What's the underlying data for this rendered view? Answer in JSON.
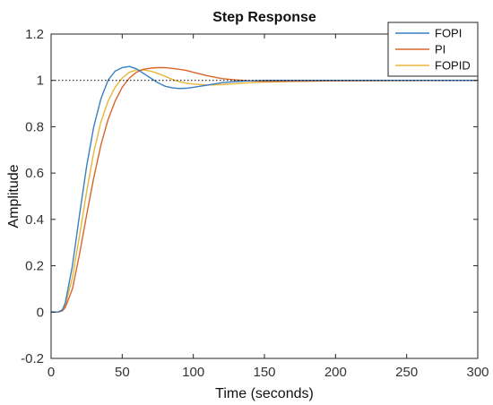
{
  "chart_data": {
    "type": "line",
    "title": "Step Response",
    "xlabel": "Time (seconds)",
    "ylabel": "Amplitude",
    "xlim": [
      0,
      300
    ],
    "ylim": [
      -0.2,
      1.2
    ],
    "xticks": [
      0,
      50,
      100,
      150,
      200,
      250,
      300
    ],
    "yticks": [
      -0.2,
      0,
      0.2,
      0.4,
      0.6,
      0.8,
      1,
      1.2
    ],
    "xtick_labels": [
      "0",
      "50",
      "100",
      "150",
      "200",
      "250",
      "300"
    ],
    "ytick_labels": [
      "-0.2",
      "0",
      "0.2",
      "0.4",
      "0.6",
      "0.8",
      "1",
      "1.2"
    ],
    "reference_line": {
      "y": 1,
      "style": "dotted"
    },
    "grid": false,
    "legend_position": "top-right",
    "series": [
      {
        "name": "FOPI",
        "color": "#3a7fc0",
        "x": [
          0,
          5,
          8,
          10,
          15,
          20,
          25,
          30,
          35,
          40,
          45,
          50,
          55,
          60,
          65,
          70,
          75,
          80,
          85,
          90,
          95,
          100,
          110,
          120,
          130,
          140,
          150,
          175,
          200,
          250,
          300
        ],
        "y": [
          0,
          0,
          0.01,
          0.04,
          0.2,
          0.42,
          0.63,
          0.8,
          0.92,
          1.0,
          1.04,
          1.055,
          1.06,
          1.05,
          1.03,
          1.01,
          0.99,
          0.975,
          0.968,
          0.965,
          0.966,
          0.97,
          0.98,
          0.99,
          0.995,
          0.998,
          1.0,
          1.0,
          1.0,
          1.0,
          1.0
        ]
      },
      {
        "name": "PI",
        "color": "#d9662a",
        "x": [
          0,
          5,
          8,
          10,
          15,
          20,
          25,
          30,
          35,
          40,
          45,
          50,
          55,
          60,
          65,
          70,
          75,
          80,
          85,
          90,
          95,
          100,
          110,
          120,
          130,
          140,
          150,
          175,
          200,
          250,
          300
        ],
        "y": [
          0,
          0,
          0.005,
          0.02,
          0.1,
          0.25,
          0.42,
          0.58,
          0.72,
          0.83,
          0.91,
          0.97,
          1.01,
          1.035,
          1.048,
          1.053,
          1.055,
          1.055,
          1.052,
          1.048,
          1.043,
          1.035,
          1.02,
          1.008,
          1.002,
          0.998,
          0.996,
          0.997,
          0.998,
          0.999,
          1.0
        ]
      },
      {
        "name": "FOPID",
        "color": "#e8b63a",
        "x": [
          0,
          5,
          8,
          10,
          15,
          20,
          25,
          30,
          35,
          40,
          45,
          50,
          55,
          60,
          65,
          70,
          75,
          80,
          85,
          90,
          95,
          100,
          110,
          120,
          130,
          140,
          150,
          175,
          200,
          250,
          300
        ],
        "y": [
          0,
          0,
          0.01,
          0.03,
          0.15,
          0.33,
          0.52,
          0.69,
          0.82,
          0.91,
          0.97,
          1.01,
          1.035,
          1.045,
          1.045,
          1.04,
          1.03,
          1.018,
          1.005,
          0.995,
          0.988,
          0.984,
          0.98,
          0.982,
          0.986,
          0.99,
          0.993,
          0.996,
          0.998,
          1.0,
          1.0
        ]
      }
    ]
  }
}
